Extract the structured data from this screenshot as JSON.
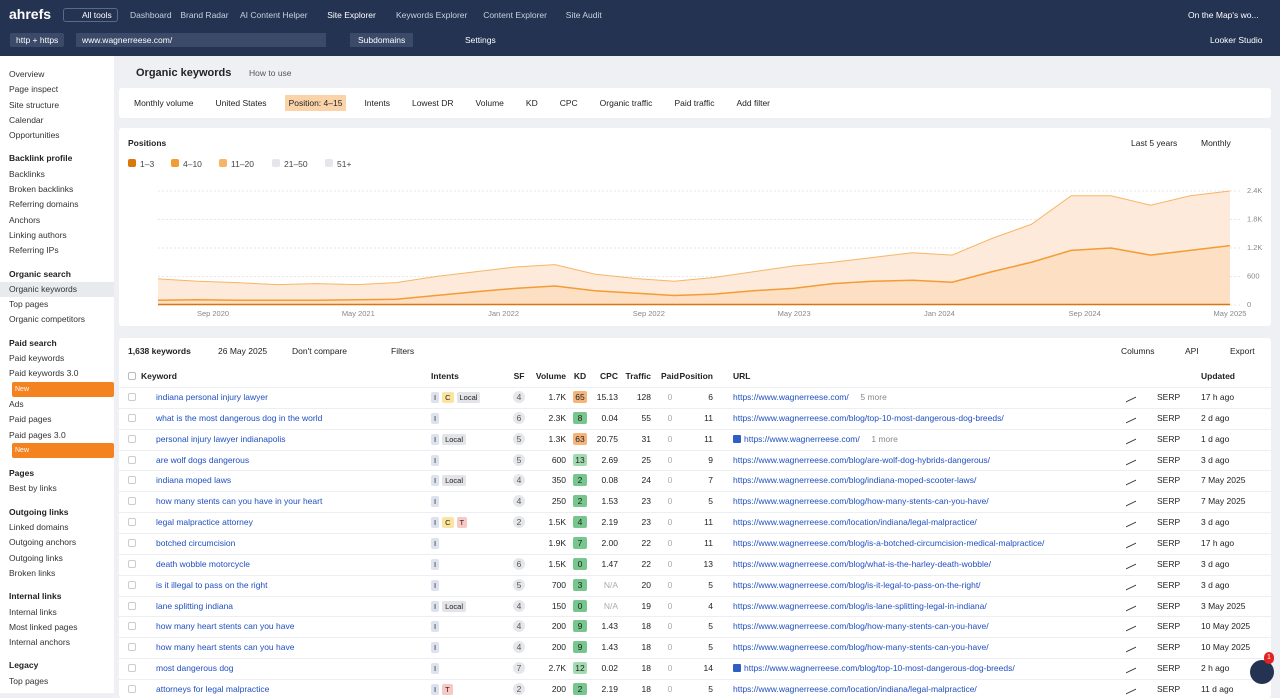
{
  "nav": {
    "logo": "ahrefs",
    "all_tools": "All tools",
    "items": [
      "Dashboard",
      "Brand Radar",
      "AI Content Helper",
      "Site Explorer",
      "Keywords Explorer",
      "Content Explorer",
      "Site Audit"
    ],
    "workspace": "On the Map's wo..."
  },
  "searchbar": {
    "protocol": "http + https",
    "url": "www.wagnerreese.com/",
    "mode": "Subdomains",
    "settings": "Settings",
    "looker": "Looker Studio"
  },
  "sidebar": [
    {
      "title": null,
      "items": [
        {
          "label": "Overview"
        },
        {
          "label": "Page inspect"
        },
        {
          "label": "Site structure"
        },
        {
          "label": "Calendar"
        },
        {
          "label": "Opportunities"
        }
      ]
    },
    {
      "title": "Backlink profile",
      "items": [
        {
          "label": "Backlinks"
        },
        {
          "label": "Broken backlinks"
        },
        {
          "label": "Referring domains"
        },
        {
          "label": "Anchors"
        },
        {
          "label": "Linking authors"
        },
        {
          "label": "Referring IPs"
        }
      ]
    },
    {
      "title": "Organic search",
      "items": [
        {
          "label": "Organic keywords",
          "active": true
        },
        {
          "label": "Top pages"
        },
        {
          "label": "Organic competitors"
        }
      ]
    },
    {
      "title": "Paid search",
      "items": [
        {
          "label": "Paid keywords"
        },
        {
          "label": "Paid keywords 3.0",
          "badge": "New"
        },
        {
          "label": "Ads"
        },
        {
          "label": "Paid pages"
        },
        {
          "label": "Paid pages 3.0",
          "badge": "New"
        }
      ]
    },
    {
      "title": "Pages",
      "items": [
        {
          "label": "Best by links"
        }
      ]
    },
    {
      "title": "Outgoing links",
      "items": [
        {
          "label": "Linked domains"
        },
        {
          "label": "Outgoing anchors"
        },
        {
          "label": "Outgoing links"
        },
        {
          "label": "Broken links"
        }
      ]
    },
    {
      "title": "Internal links",
      "items": [
        {
          "label": "Internal links"
        },
        {
          "label": "Most linked pages"
        },
        {
          "label": "Internal anchors"
        }
      ]
    },
    {
      "title": "Legacy",
      "items": [
        {
          "label": "Top pages"
        }
      ]
    }
  ],
  "header": {
    "title": "Organic keywords",
    "help": "How to use"
  },
  "filters": [
    {
      "label": "Monthly volume"
    },
    {
      "label": "United States"
    },
    {
      "label": "Position: 4–15",
      "active": true
    },
    {
      "label": "Intents"
    },
    {
      "label": "Lowest DR"
    },
    {
      "label": "Volume"
    },
    {
      "label": "KD"
    },
    {
      "label": "CPC"
    },
    {
      "label": "Organic traffic"
    },
    {
      "label": "Paid traffic"
    },
    {
      "label": "Add filter",
      "add": true
    }
  ],
  "positions_chart": {
    "type": "area",
    "title": "Positions",
    "range": "Last 5 years",
    "interval": "Monthly",
    "series": [
      {
        "name": "1–3",
        "color": "#d9770a",
        "checked": true,
        "values": [
          10,
          10,
          10,
          10,
          10,
          10,
          10,
          10,
          10,
          10,
          10,
          10,
          10,
          10,
          10,
          10,
          10,
          10,
          10,
          10,
          10,
          10,
          10,
          10,
          10,
          10,
          10,
          10
        ]
      },
      {
        "name": "4–10",
        "color": "#f39c34",
        "checked": true,
        "values": [
          90,
          100,
          90,
          90,
          90,
          100,
          110,
          190,
          270,
          340,
          390,
          290,
          240,
          190,
          220,
          290,
          340,
          440,
          490,
          510,
          470,
          690,
          890,
          1140,
          1190,
          1040,
          1140,
          1240
        ]
      },
      {
        "name": "11–20",
        "color": "#f7b565",
        "checked": true,
        "values": [
          450,
          390,
          370,
          330,
          350,
          320,
          350,
          400,
          420,
          450,
          450,
          350,
          310,
          300,
          350,
          400,
          470,
          450,
          500,
          580,
          570,
          700,
          800,
          1150,
          1100,
          1050,
          1150,
          1150
        ]
      },
      {
        "name": "21–50",
        "color": "#c9ccd1",
        "checked": false
      },
      {
        "name": "51+",
        "color": "#dcdee2",
        "checked": false
      }
    ],
    "ylim": [
      0,
      2400
    ],
    "yticks": [
      0,
      600,
      {
        "value": 1200,
        "label": "1.2K"
      },
      {
        "value": 1800,
        "label": "1.8K"
      },
      {
        "value": 2400,
        "label": "2.4K"
      }
    ],
    "xticks": [
      "Sep 2020",
      "May 2021",
      "Jan 2022",
      "Sep 2022",
      "May 2023",
      "Jan 2024",
      "Sep 2024",
      "May 2025"
    ]
  },
  "toolbar": {
    "count": "1,638 keywords",
    "date": "26 May 2025",
    "compare": "Don't compare",
    "filters": "Filters",
    "columns": "Columns",
    "api": "API",
    "export": "Export"
  },
  "table": {
    "columns": [
      "Keyword",
      "Intents",
      "SF",
      "Volume",
      "KD",
      "CPC",
      "Traffic",
      "Paid",
      "Position",
      "URL",
      "Updated"
    ],
    "serp": "SERP",
    "rows": [
      {
        "keyword": "indiana personal injury lawyer",
        "intents": [
          "I",
          "C",
          "Local"
        ],
        "sf": 4,
        "volume": "1.7K",
        "kd": 65,
        "cpc": "15.13",
        "traffic": 128,
        "paid": 0,
        "position": 6,
        "url": "https://www.wagnerreese.com/",
        "more": "5 more",
        "updated": "17 h ago"
      },
      {
        "keyword": "what is the most dangerous dog in the world",
        "intents": [
          "I"
        ],
        "sf": 6,
        "volume": "2.3K",
        "kd": 8,
        "cpc": "0.04",
        "traffic": 55,
        "paid": 0,
        "position": 11,
        "url": "https://www.wagnerreese.com/blog/top-10-most-dangerous-dog-breeds/",
        "updated": "2 d ago"
      },
      {
        "keyword": "personal injury lawyer indianapolis",
        "intents": [
          "I",
          "Local"
        ],
        "sf": 5,
        "volume": "1.3K",
        "kd": 63,
        "cpc": "20.75",
        "traffic": 31,
        "paid": 0,
        "position": 11,
        "url": "https://www.wagnerreese.com/",
        "icon": true,
        "more": "1 more",
        "updated": "1 d ago"
      },
      {
        "keyword": "are wolf dogs dangerous",
        "intents": [
          "I"
        ],
        "sf": 5,
        "volume": "600",
        "kd": 13,
        "cpc": "2.69",
        "traffic": 25,
        "paid": 0,
        "position": 9,
        "url": "https://www.wagnerreese.com/blog/are-wolf-dog-hybrids-dangerous/",
        "updated": "3 d ago"
      },
      {
        "keyword": "indiana moped laws",
        "intents": [
          "I",
          "Local"
        ],
        "sf": 4,
        "volume": "350",
        "kd": 2,
        "cpc": "0.08",
        "traffic": 24,
        "paid": 0,
        "position": 7,
        "url": "https://www.wagnerreese.com/blog/indiana-moped-scooter-laws/",
        "updated": "7 May 2025"
      },
      {
        "keyword": "how many stents can you have in your heart",
        "intents": [
          "I"
        ],
        "sf": 4,
        "volume": "250",
        "kd": 2,
        "cpc": "1.53",
        "traffic": 23,
        "paid": 0,
        "position": 5,
        "url": "https://www.wagnerreese.com/blog/how-many-stents-can-you-have/",
        "updated": "7 May 2025"
      },
      {
        "keyword": "legal malpractice attorney",
        "intents": [
          "I",
          "C",
          "T"
        ],
        "sf": 2,
        "volume": "1.5K",
        "kd": 4,
        "cpc": "2.19",
        "traffic": 23,
        "paid": 0,
        "position": 11,
        "url": "https://www.wagnerreese.com/location/indiana/legal-malpractice/",
        "updated": "3 d ago"
      },
      {
        "keyword": "botched circumcision",
        "intents": [
          "I"
        ],
        "sf": null,
        "volume": "1.9K",
        "kd": 7,
        "cpc": "2.00",
        "traffic": 22,
        "paid": 0,
        "position": 11,
        "url": "https://www.wagnerreese.com/blog/is-a-botched-circumcision-medical-malpractice/",
        "updated": "17 h ago"
      },
      {
        "keyword": "death wobble motorcycle",
        "intents": [
          "I"
        ],
        "sf": 6,
        "volume": "1.5K",
        "kd": 0,
        "cpc": "1.47",
        "traffic": 22,
        "paid": 0,
        "position": 13,
        "url": "https://www.wagnerreese.com/blog/what-is-the-harley-death-wobble/",
        "updated": "3 d ago"
      },
      {
        "keyword": "is it illegal to pass on the right",
        "intents": [
          "I"
        ],
        "sf": 5,
        "volume": "700",
        "kd": 3,
        "cpc": "N/A",
        "traffic": 20,
        "paid": 0,
        "position": 5,
        "url": "https://www.wagnerreese.com/blog/is-it-legal-to-pass-on-the-right/",
        "updated": "3 d ago"
      },
      {
        "keyword": "lane splitting indiana",
        "intents": [
          "I",
          "Local"
        ],
        "sf": 4,
        "volume": "150",
        "kd": 0,
        "cpc": "N/A",
        "traffic": 19,
        "paid": 0,
        "position": 4,
        "url": "https://www.wagnerreese.com/blog/is-lane-splitting-legal-in-indiana/",
        "updated": "3 May 2025"
      },
      {
        "keyword": "how many heart stents can you have",
        "intents": [
          "I"
        ],
        "sf": 4,
        "volume": "200",
        "kd": 9,
        "cpc": "1.43",
        "traffic": 18,
        "paid": 0,
        "position": 5,
        "url": "https://www.wagnerreese.com/blog/how-many-stents-can-you-have/",
        "updated": "10 May 2025"
      },
      {
        "keyword": "how many heart stents can you have",
        "intents": [
          "I"
        ],
        "sf": 4,
        "volume": "200",
        "kd": 9,
        "cpc": "1.43",
        "traffic": 18,
        "paid": 0,
        "position": 5,
        "url": "https://www.wagnerreese.com/blog/how-many-stents-can-you-have/",
        "updated": "10 May 2025"
      },
      {
        "keyword": "most dangerous dog",
        "intents": [
          "I"
        ],
        "sf": 7,
        "volume": "2.7K",
        "kd": 12,
        "cpc": "0.02",
        "traffic": 18,
        "paid": 0,
        "position": 14,
        "url": "https://www.wagnerreese.com/blog/top-10-most-dangerous-dog-breeds/",
        "icon": true,
        "updated": "2 h ago"
      },
      {
        "keyword": "attorneys for legal malpractice",
        "intents": [
          "I",
          "T"
        ],
        "sf": 2,
        "volume": "200",
        "kd": 2,
        "cpc": "2.19",
        "traffic": 18,
        "paid": 0,
        "position": 5,
        "url": "https://www.wagnerreese.com/location/indiana/legal-malpractice/",
        "updated": "11 d ago"
      }
    ]
  },
  "help_badge": "1"
}
